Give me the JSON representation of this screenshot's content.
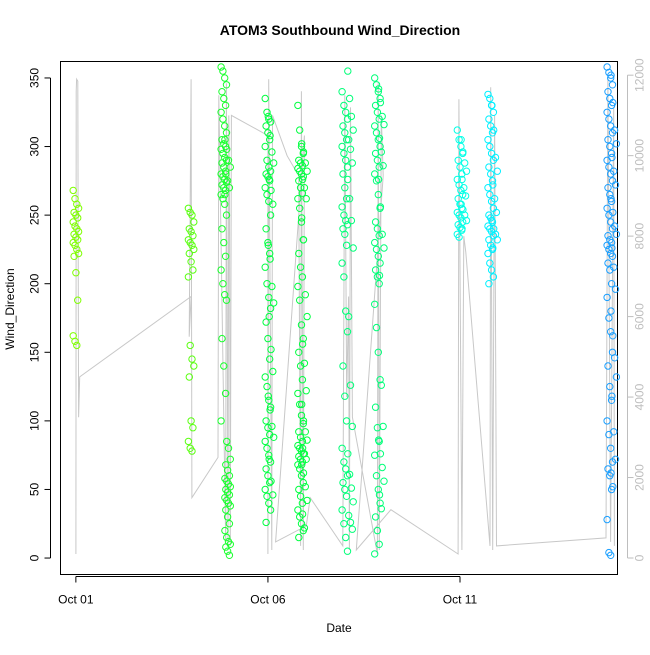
{
  "chart_data": {
    "type": "scatter",
    "title": "ATOM3 Southbound Wind_Direction",
    "xlabel": "Date",
    "ylabel": "Wind_Direction",
    "x_tick_labels": [
      "Oct 01",
      "Oct 06",
      "Oct 11"
    ],
    "x_ticks_day": [
      1,
      6,
      11
    ],
    "xlim_day": [
      0.6,
      15.1
    ],
    "y_ticks": [
      0,
      50,
      100,
      150,
      200,
      250,
      300,
      350
    ],
    "ylim": [
      -12,
      362
    ],
    "y2_ticks": [
      0,
      2000,
      4000,
      6000,
      8000,
      10000,
      12000
    ],
    "y2_tick_labels": [
      "0",
      "2000",
      "4000",
      "6000",
      "8000",
      "10000",
      "12000"
    ],
    "y2lim": [
      -410,
      12340
    ],
    "grid": false,
    "colors": {
      "axis": "#000000",
      "secondary_axis": "#bebebe",
      "line": "#c8c8c8",
      "clusters": [
        "#7fff00",
        "#5bff12",
        "#1aff2e",
        "#00ff40",
        "#00ff78",
        "#00ffe6",
        "#00f0ff",
        "#1a9fff"
      ]
    },
    "series": [
      {
        "color": "#7fff00",
        "points": [
          {
            "day": 1.0,
            "dirs": [
              268,
              262,
              258,
              255,
              252,
              250,
              248,
              245,
              242,
              240,
              238,
              236,
              234,
              232,
              230,
              228,
              225,
              222,
              220,
              208,
              188,
              162,
              158,
              155
            ]
          }
        ]
      },
      {
        "color": "#5bff12",
        "points": [
          {
            "day": 4.0,
            "dirs": [
              255,
              252,
              250,
              245,
              240,
              238,
              235,
              232,
              230,
              228,
              225,
              222,
              216,
              210,
              205,
              155,
              145,
              140,
              132,
              100,
              95,
              85,
              80,
              78
            ]
          }
        ]
      },
      {
        "color": "#1aff2e",
        "points": [
          {
            "day": 4.85,
            "dirs": [
              358,
              355,
              350,
              345,
              340,
              335,
              330,
              325,
              320,
              315,
              310,
              305,
              302,
              300,
              298,
              295,
              292,
              290,
              288,
              285,
              282,
              280,
              278,
              276,
              274,
              272,
              270,
              268,
              265,
              262,
              258,
              250,
              240,
              230,
              220,
              210,
              200,
              192,
              188,
              160,
              140,
              120,
              100
            ]
          },
          {
            "day": 4.95,
            "dirs": [
              305,
              298,
              290,
              285,
              280,
              275,
              270,
              265,
              85,
              80,
              72,
              68,
              64,
              60,
              58,
              56,
              54,
              52,
              50,
              48,
              46,
              44,
              42,
              40,
              38,
              35,
              30,
              25,
              20,
              15,
              12,
              10,
              8,
              5,
              2
            ]
          }
        ]
      },
      {
        "color": "#00ff40",
        "points": [
          {
            "day": 6.0,
            "dirs": [
              335,
              325,
              320,
              318,
              315,
              310,
              305,
              300,
              290,
              285,
              282,
              280,
              278,
              275,
              270,
              265,
              260,
              250,
              240,
              230,
              222,
              212,
              200,
              190,
              182,
              172,
              160,
              145,
              132,
              125,
              115,
              110,
              100,
              95,
              90,
              85,
              80,
              75,
              70,
              65,
              60,
              55,
              50,
              45,
              40,
              35,
              26
            ]
          },
          {
            "day": 6.08,
            "dirs": [
              322,
              308,
              296,
              288,
              276,
              268,
              258,
              228,
              218,
              198,
              186,
              176,
              152,
              136,
              118,
              108,
              96,
              88,
              72,
              56,
              46
            ]
          },
          {
            "day": 6.85,
            "dirs": [
              330,
              312,
              300,
              295,
              290,
              288,
              286,
              284,
              282,
              280,
              278,
              275,
              270,
              266,
              262,
              255,
              245,
              232,
              222,
              212,
              205,
              198,
              188,
              170,
              160,
              150,
              140,
              130,
              120,
              112,
              104,
              98,
              92,
              88,
              85,
              82,
              80,
              78,
              76,
              74,
              72,
              70,
              68,
              65,
              60,
              55,
              50,
              45,
              40,
              35,
              30,
              25,
              20,
              15
            ]
          },
          {
            "day": 6.95,
            "dirs": [
              302,
              296,
              288,
              282,
              276,
              270,
              262,
              248,
              232,
              192,
              176,
              156,
              142,
              122,
              112,
              100,
              92,
              86,
              80,
              76,
              72,
              68,
              62,
              52,
              42,
              32,
              22
            ]
          }
        ]
      },
      {
        "color": "#00ff78",
        "points": [
          {
            "day": 8.0,
            "dirs": [
              340,
              330,
              325,
              320,
              315,
              310,
              305,
              300,
              295,
              290,
              285,
              280,
              270,
              262,
              256,
              250,
              246,
              243,
              240,
              236,
              228,
              215,
              205,
              180,
              165,
              140,
              118,
              100,
              80,
              70,
              65,
              60,
              55,
              50,
              45,
              35,
              25,
              15,
              5
            ]
          },
          {
            "day": 8.15,
            "dirs": [
              355,
              335,
              322,
              312,
              305,
              298,
              288,
              276,
              262,
              246,
              226,
              176,
              126,
              96,
              76,
              61,
              51,
              41,
              31,
              26,
              21
            ]
          },
          {
            "day": 8.85,
            "dirs": [
              350,
              345,
              340,
              335,
              330,
              325,
              320,
              315,
              310,
              305,
              300,
              295,
              290,
              285,
              280,
              275,
              265,
              255,
              245,
              240,
              235,
              230,
              225,
              220,
              215,
              210,
              205,
              200,
              185,
              168,
              150,
              130,
              110,
              95,
              85,
              75,
              60,
              50,
              40,
              30,
              20,
              10,
              3
            ]
          },
          {
            "day": 8.95,
            "dirs": [
              342,
              332,
              322,
              316,
              306,
              296,
              286,
              276,
              256,
              236,
              226,
              206,
              126,
              96,
              86,
              76,
              66,
              56,
              46,
              36
            ]
          }
        ]
      },
      {
        "color": "#00ffe6",
        "points": [
          {
            "day": 11.0,
            "dirs": [
              312,
              305,
              300,
              295,
              290,
              285,
              280,
              276,
              272,
              268,
              265,
              262,
              258,
              255,
              252,
              250,
              248,
              245,
              243,
              241,
              239,
              236,
              234
            ]
          },
          {
            "day": 11.1,
            "dirs": [
              305,
              296,
              288,
              282,
              276,
              270,
              264,
              258,
              254,
              250,
              246,
              240
            ]
          }
        ]
      },
      {
        "color": "#00f0ff",
        "points": [
          {
            "day": 11.8,
            "dirs": [
              338,
              335,
              330,
              325,
              320,
              315,
              310,
              305,
              300,
              295,
              290,
              285,
              280,
              275,
              270,
              265,
              260,
              255,
              250,
              248,
              245,
              242,
              240,
              238,
              235,
              232,
              228,
              225,
              222,
              215,
              210,
              205,
              200
            ]
          },
          {
            "day": 11.9,
            "dirs": [
              330,
              312,
              292,
              282,
              272,
              262,
              252,
              246,
              240,
              236,
              232,
              226
            ]
          }
        ]
      },
      {
        "color": "#1a9fff",
        "points": [
          {
            "day": 14.9,
            "dirs": [
              358,
              354,
              350,
              345,
              340,
              335,
              330,
              325,
              320,
              315,
              310,
              305,
              300,
              295,
              290,
              285,
              280,
              275,
              270,
              265,
              260,
              255,
              250,
              245,
              240,
              235,
              232,
              230,
              228,
              225,
              222,
              220,
              215,
              210,
              200,
              190,
              175,
              165,
              150,
              140,
              125,
              115,
              100,
              90,
              80,
              70,
              65,
              60,
              50,
              28,
              4,
              2
            ]
          },
          {
            "day": 15.0,
            "dirs": [
              352,
              332,
              312,
              302,
              292,
              282,
              272,
              262,
              252,
              242,
              236,
              226,
              212,
              196,
              180,
              162,
              146,
              132,
              118,
              92,
              72,
              62,
              52
            ]
          }
        ]
      }
    ],
    "altitude_trace": [
      [
        1.0,
        100
      ],
      [
        1.01,
        11600
      ],
      [
        1.02,
        11900
      ],
      [
        1.05,
        11850
      ],
      [
        1.07,
        3500
      ],
      [
        1.1,
        4500
      ],
      [
        4.0,
        6500
      ],
      [
        3.95,
        5500
      ],
      [
        4.0,
        11900
      ],
      [
        4.02,
        1500
      ],
      [
        4.7,
        2500
      ],
      [
        4.72,
        11500
      ],
      [
        4.9,
        400
      ],
      [
        4.92,
        11800
      ],
      [
        4.96,
        300
      ],
      [
        4.98,
        11000
      ],
      [
        5.0,
        9000
      ],
      [
        5.02,
        300
      ],
      [
        5.05,
        11000
      ],
      [
        6.0,
        10500
      ],
      [
        6.0,
        100
      ],
      [
        6.02,
        11900
      ],
      [
        6.1,
        200
      ],
      [
        6.12,
        11000
      ],
      [
        6.5,
        10000
      ],
      [
        6.8,
        9500
      ],
      [
        6.85,
        300
      ],
      [
        6.87,
        11600
      ],
      [
        6.92,
        200
      ],
      [
        6.95,
        10500
      ],
      [
        6.2,
        400
      ],
      [
        7.0,
        800
      ],
      [
        7.1,
        1500
      ],
      [
        7.95,
        300
      ],
      [
        8.0,
        11500
      ],
      [
        8.05,
        4000
      ],
      [
        8.1,
        6500
      ],
      [
        8.12,
        200
      ],
      [
        8.15,
        11200
      ],
      [
        8.2,
        3500
      ],
      [
        8.85,
        100
      ],
      [
        8.87,
        11800
      ],
      [
        8.9,
        200
      ],
      [
        8.95,
        11000
      ],
      [
        9.0,
        9500
      ],
      [
        8.3,
        200
      ],
      [
        9.2,
        1200
      ],
      [
        10.95,
        100
      ],
      [
        10.97,
        11400
      ],
      [
        11.05,
        200
      ],
      [
        11.1,
        8000
      ],
      [
        11.15,
        7600
      ],
      [
        11.78,
        300
      ],
      [
        11.8,
        11700
      ],
      [
        11.85,
        200
      ],
      [
        11.9,
        11000
      ],
      [
        11.95,
        300
      ],
      [
        14.8,
        500
      ],
      [
        14.85,
        12000
      ],
      [
        14.92,
        400
      ],
      [
        15.0,
        11200
      ],
      [
        15.02,
        300
      ]
    ]
  }
}
